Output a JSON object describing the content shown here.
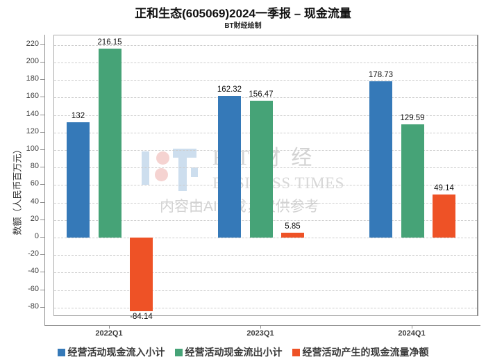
{
  "chart_data": {
    "type": "bar",
    "title": "正和生态(605069)2024一季报 – 现金流量",
    "subtitle": "BT财经绘制",
    "ylabel": "数额（人民币百万元）",
    "categories": [
      "2022Q1",
      "2023Q1",
      "2024Q1"
    ],
    "series": [
      {
        "name": "经营活动现金流入小计",
        "color": "#3579b8",
        "values": [
          132,
          162.32,
          178.73
        ]
      },
      {
        "name": "经营活动现金流出小计",
        "color": "#46a377",
        "values": [
          216.15,
          156.47,
          129.59
        ]
      },
      {
        "name": "经营活动产生的现金流量净额",
        "color": "#ee5226",
        "values": [
          -84.14,
          5.85,
          49.14
        ]
      }
    ],
    "yticks": [
      220,
      200,
      180,
      160,
      140,
      120,
      100,
      80,
      60,
      40,
      20,
      0,
      -20,
      -40,
      -60,
      -80
    ],
    "ylim": [
      -90.5,
      231
    ],
    "grid": "dashed-horizontal",
    "legend_position": "bottom"
  },
  "watermark": {
    "logo_icon": "bt-logo",
    "brand_cjk": "BT财经",
    "brand_en": "BUSINESS TIMES",
    "disclaimer": "内容由AI生成，仅供参考",
    "logo_colors": {
      "blue": "#cddeee",
      "pink": "#f5d3d1"
    }
  }
}
